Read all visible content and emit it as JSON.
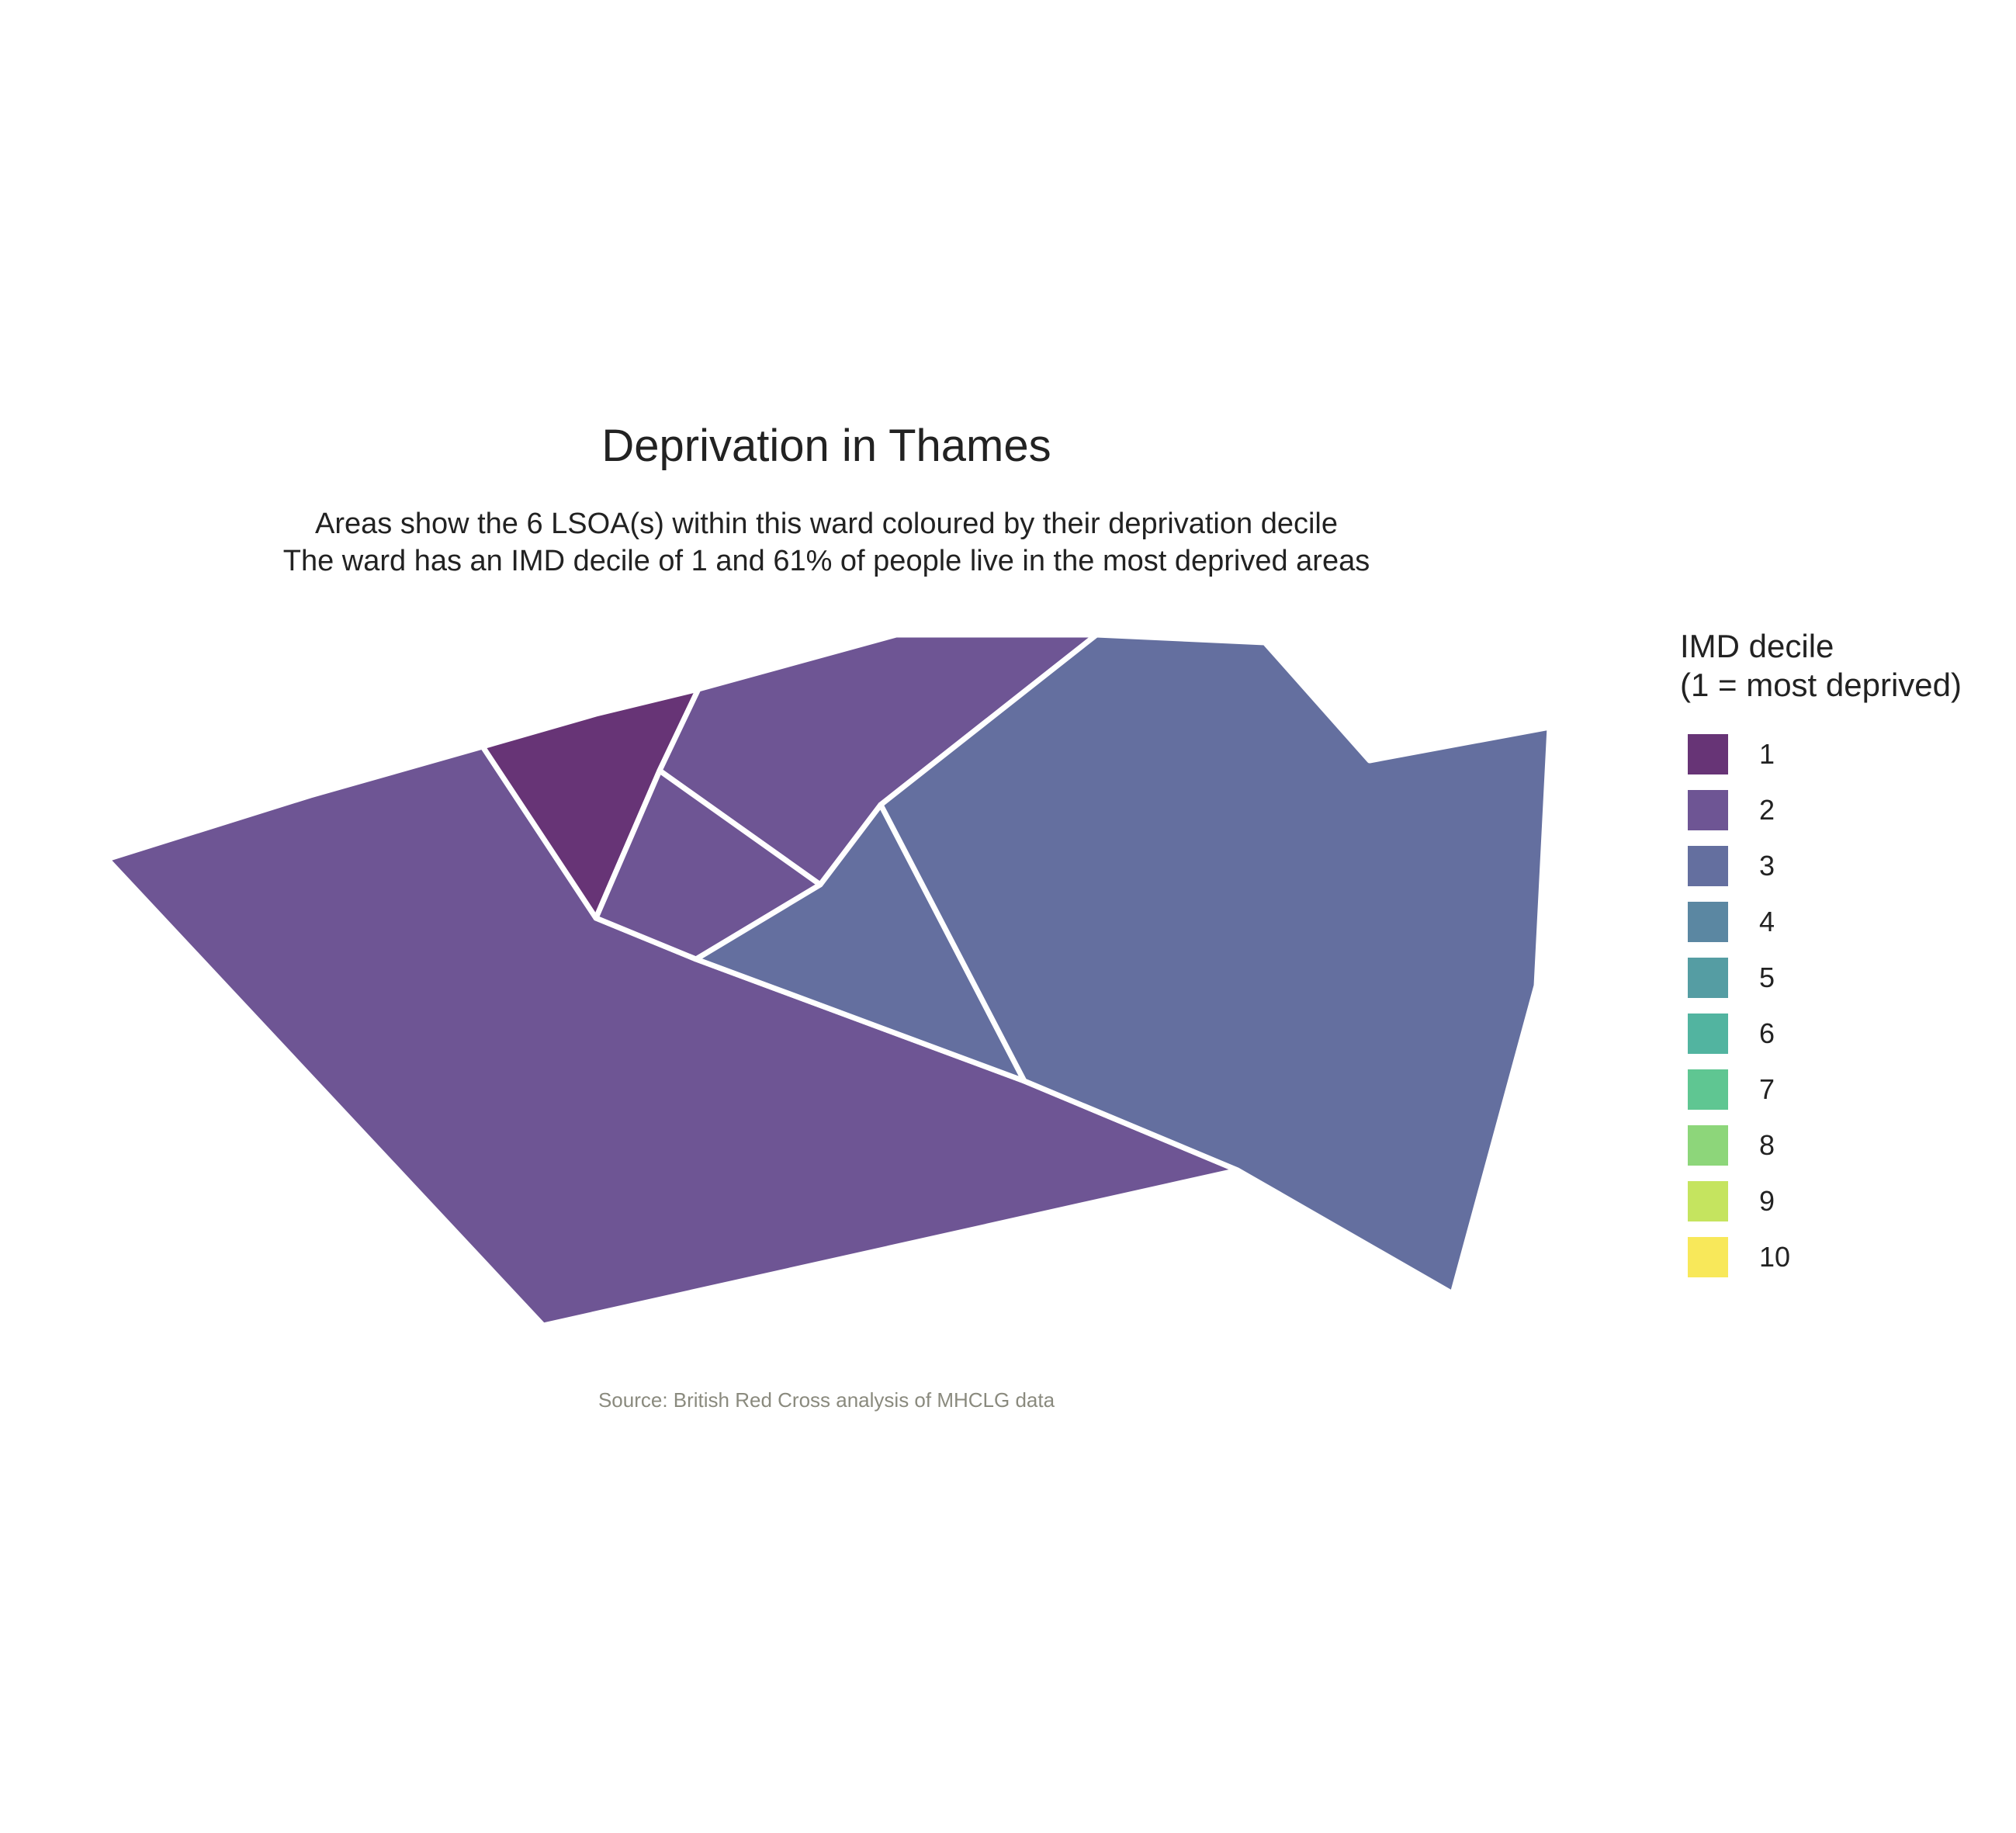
{
  "title": "Deprivation in Thames",
  "subtitle": [
    "Areas show the 6 LSOA(s) within this ward coloured by their deprivation decile",
    "The ward has an IMD decile of 1 and 61% of people live in the most deprived areas"
  ],
  "caption": "Source: British Red Cross analysis of MHCLG data",
  "legend": {
    "title": [
      "IMD decile",
      "(1 = most deprived)"
    ],
    "items": [
      {
        "label": "1",
        "color": "#673476"
      },
      {
        "label": "2",
        "color": "#6e5594"
      },
      {
        "label": "3",
        "color": "#646f9f"
      },
      {
        "label": "4",
        "color": "#5b87a2"
      },
      {
        "label": "5",
        "color": "#559da3"
      },
      {
        "label": "6",
        "color": "#52b4a0"
      },
      {
        "label": "7",
        "color": "#5fc692"
      },
      {
        "label": "8",
        "color": "#8dd67a"
      },
      {
        "label": "9",
        "color": "#c5e45f"
      },
      {
        "label": "10",
        "color": "#f8e85a"
      }
    ]
  },
  "map": {
    "ward": "Thames",
    "lsoa_count": 6,
    "ward_imd_decile": 1,
    "share_in_most_deprived": 0.61,
    "border_color": "#ffffff",
    "areas": [
      {
        "id": "lsoa-large-southwest",
        "imd_decile": 2
      },
      {
        "id": "lsoa-small-north",
        "imd_decile": 1
      },
      {
        "id": "lsoa-north",
        "imd_decile": 2
      },
      {
        "id": "lsoa-central",
        "imd_decile": 2
      },
      {
        "id": "lsoa-central-triangle",
        "imd_decile": 3
      },
      {
        "id": "lsoa-east",
        "imd_decile": 3
      }
    ]
  }
}
